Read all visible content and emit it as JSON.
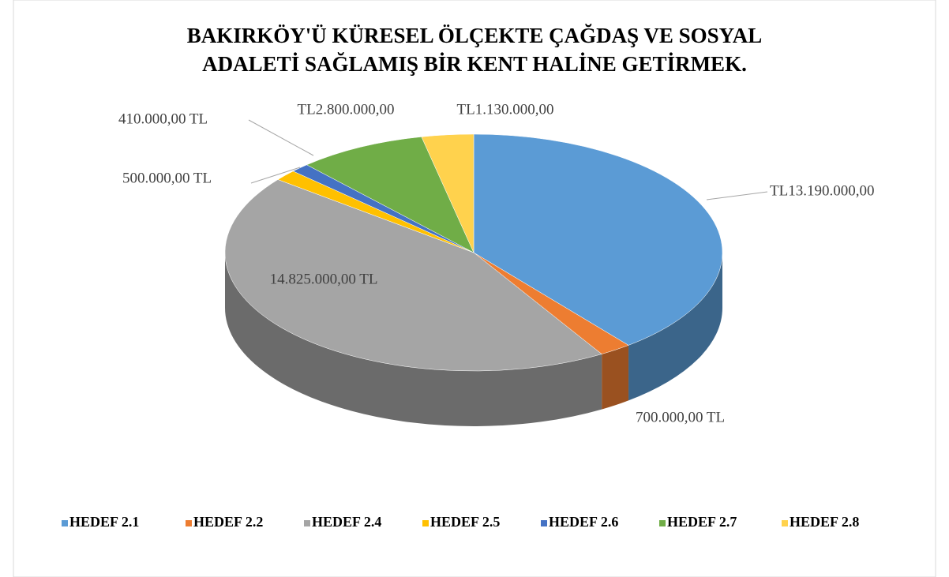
{
  "chart_data": {
    "type": "pie",
    "title": [
      "BAKIRKÖY'Ü KÜRESEL ÖLÇEKTE ÇAĞDAŞ VE SOSYAL",
      "ADALETİ SAĞLAMIŞ BİR KENT HALİNE GETİRMEK."
    ],
    "categories": [
      "HEDEF 2.1",
      "HEDEF 2.2",
      "HEDEF 2.4",
      "HEDEF 2.5",
      "HEDEF 2.6",
      "HEDEF 2.7",
      "HEDEF 2.8"
    ],
    "values": [
      13190000,
      700000,
      14825000,
      500000,
      410000,
      2800000,
      1130000
    ],
    "value_labels": [
      "TL13.190.000,00",
      "700.000,00 TL",
      "14.825.000,00 TL",
      "500.000,00 TL",
      "410.000,00 TL",
      "TL2.800.000,00",
      "TL1.130.000,00"
    ],
    "colors": [
      "#5b9bd5",
      "#ed7d31",
      "#a5a5a5",
      "#ffc000",
      "#4472c4",
      "#70ad47",
      "#ffd24d"
    ],
    "legend": "bottom"
  }
}
